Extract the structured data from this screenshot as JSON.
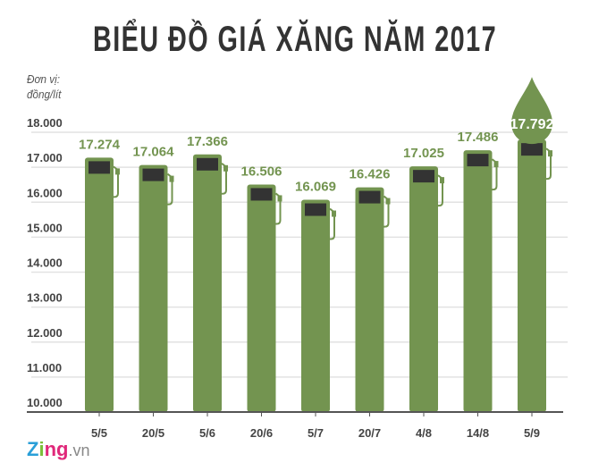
{
  "chart_data": {
    "type": "bar",
    "title": "BIỂU ĐỒ GIÁ XĂNG NĂM 2017",
    "ylabel": "Đơn vị: đồng/lít",
    "ylabel_lines": [
      "Đơn vị:",
      "đồng/lít"
    ],
    "categories": [
      "5/5",
      "20/5",
      "5/6",
      "20/6",
      "5/7",
      "20/7",
      "4/8",
      "14/8",
      "5/9"
    ],
    "values": [
      17274,
      17064,
      17366,
      16506,
      16069,
      16426,
      17025,
      17486,
      17792
    ],
    "value_labels": [
      "17.274",
      "17.064",
      "17.366",
      "16.506",
      "16.069",
      "16.426",
      "17.025",
      "17.486",
      "17.792"
    ],
    "ylim": [
      10000,
      18000
    ],
    "yticks": [
      10000,
      11000,
      12000,
      13000,
      14000,
      15000,
      16000,
      17000,
      18000
    ],
    "ytick_labels": [
      "10.000",
      "11.000",
      "12.000",
      "13.000",
      "14.000",
      "15.000",
      "16.000",
      "17.000",
      "18.000"
    ],
    "grid": true,
    "highlight_index": 8,
    "colors": {
      "bar": "#739450",
      "screen": "#333333",
      "grid": "#e2e2e2",
      "axis": "#555555",
      "title": "#333333"
    }
  },
  "logo": {
    "brand": "zing",
    "suffix": ".vn"
  }
}
